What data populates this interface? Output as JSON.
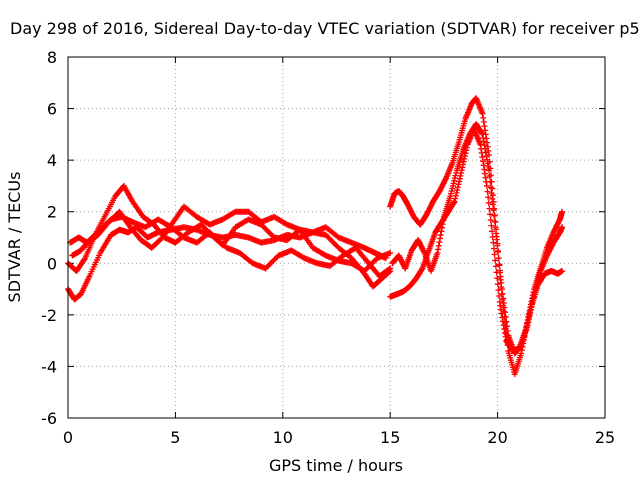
{
  "chart_data": {
    "type": "scatter",
    "title": "Day 298 of 2016, Sidereal Day-to-day VTEC variation (SDTVAR) for receiver p5",
    "xlabel": "GPS time / hours",
    "ylabel": "SDTVAR / TECUs",
    "xlim": [
      0,
      25
    ],
    "ylim": [
      -6,
      8
    ],
    "xticks": [
      "0",
      "5",
      "10",
      "15",
      "20",
      "25"
    ],
    "yticks": [
      "-6",
      "-4",
      "-2",
      "0",
      "2",
      "4",
      "6",
      "8"
    ],
    "grid": true,
    "marker": "plus",
    "color": "#ff0000",
    "series": [
      {
        "x": [
          0.0,
          0.3,
          0.6,
          1.0,
          1.5,
          2.0,
          2.4,
          2.8,
          3.2,
          3.7,
          4.2,
          4.8,
          5.4,
          6.0,
          6.6,
          7.2,
          7.8,
          8.4,
          9.0,
          9.6,
          10.2,
          10.8,
          11.4,
          12.0,
          12.6,
          13.2,
          13.8,
          14.2,
          14.6,
          15.0
        ],
        "y": [
          -1.0,
          -1.4,
          -1.2,
          -0.5,
          0.4,
          1.1,
          1.3,
          1.2,
          1.4,
          1.0,
          1.2,
          1.3,
          1.4,
          1.3,
          1.1,
          1.0,
          1.1,
          1.0,
          0.8,
          0.9,
          1.1,
          1.0,
          1.2,
          1.1,
          0.6,
          0.2,
          -0.4,
          -0.9,
          -0.6,
          -0.3
        ]
      },
      {
        "x": [
          0.0,
          0.4,
          0.8,
          1.2,
          1.7,
          2.2,
          2.6,
          3.0,
          3.5,
          4.0,
          4.5,
          5.0,
          5.6,
          6.2,
          6.8,
          7.4,
          8.0,
          8.6,
          9.2,
          9.8,
          10.4,
          11.0,
          11.6,
          12.2,
          12.8,
          13.4,
          14.0,
          14.5,
          15.0
        ],
        "y": [
          0.0,
          -0.3,
          0.2,
          1.0,
          1.8,
          2.6,
          3.0,
          2.4,
          1.8,
          1.5,
          1.0,
          0.8,
          1.2,
          1.5,
          1.0,
          0.6,
          0.4,
          0.0,
          -0.2,
          0.3,
          0.5,
          0.2,
          0.0,
          -0.1,
          0.3,
          0.6,
          0.0,
          -0.5,
          -0.2
        ]
      },
      {
        "x": [
          0.1,
          0.5,
          0.9,
          1.4,
          1.9,
          2.4,
          2.9,
          3.4,
          3.9,
          4.4,
          4.9,
          5.4,
          6.0,
          6.6,
          7.2,
          7.8,
          8.4,
          9.0,
          9.6,
          10.2,
          10.8,
          11.4,
          12.0,
          12.6,
          13.2,
          13.8,
          14.3,
          14.8
        ],
        "y": [
          0.8,
          1.0,
          0.8,
          1.1,
          1.6,
          2.0,
          1.4,
          0.9,
          0.6,
          1.0,
          1.6,
          2.2,
          1.8,
          1.5,
          1.7,
          2.0,
          2.0,
          1.6,
          1.8,
          1.5,
          1.3,
          1.2,
          1.4,
          1.0,
          0.8,
          0.6,
          0.4,
          0.2
        ]
      },
      {
        "x": [
          0.2,
          0.6,
          1.0,
          1.5,
          2.0,
          2.5,
          3.0,
          3.6,
          4.2,
          4.8,
          5.4,
          6.0,
          6.6,
          7.2,
          7.8,
          8.4,
          9.0,
          9.6,
          10.2,
          10.8,
          11.4,
          12.0,
          12.6,
          13.2,
          13.8,
          14.4,
          15.0
        ],
        "y": [
          0.3,
          0.5,
          0.9,
          1.3,
          1.7,
          1.8,
          1.6,
          1.4,
          1.7,
          1.4,
          1.0,
          0.8,
          1.2,
          0.7,
          1.4,
          1.7,
          1.5,
          1.0,
          0.9,
          1.3,
          0.6,
          0.3,
          0.1,
          0.0,
          -0.3,
          0.2,
          0.4
        ]
      },
      {
        "x": [
          15.0,
          15.3,
          15.6,
          15.9,
          16.2,
          16.5,
          16.8,
          17.1,
          17.4,
          17.7,
          18.0,
          18.3,
          18.6,
          18.9,
          19.2,
          19.5,
          19.8,
          20.1,
          20.4,
          20.7,
          21.0,
          21.3,
          21.6,
          21.9,
          22.2,
          22.5,
          22.8,
          23.0
        ],
        "y": [
          -1.3,
          -1.2,
          -1.1,
          -0.9,
          -0.6,
          -0.2,
          0.5,
          1.2,
          1.6,
          2.0,
          2.4,
          3.5,
          4.6,
          5.2,
          4.6,
          3.0,
          0.8,
          -1.5,
          -3.0,
          -3.4,
          -3.3,
          -2.6,
          -1.6,
          -0.8,
          -0.4,
          -0.3,
          -0.4,
          -0.3
        ]
      },
      {
        "x": [
          15.0,
          15.2,
          15.4,
          15.6,
          15.8,
          16.1,
          16.4,
          16.7,
          17.0,
          17.3,
          17.6,
          17.9,
          18.2,
          18.5,
          18.8,
          19.0,
          19.3,
          19.6,
          19.9,
          20.2,
          20.5,
          20.8,
          21.1,
          21.4,
          21.7,
          22.0,
          22.3,
          22.6,
          22.9,
          23.0
        ],
        "y": [
          2.2,
          2.7,
          2.8,
          2.6,
          2.3,
          1.8,
          1.5,
          1.9,
          2.4,
          2.8,
          3.3,
          3.9,
          4.7,
          5.6,
          6.2,
          6.4,
          5.8,
          4.2,
          1.6,
          -1.2,
          -3.4,
          -4.3,
          -3.5,
          -2.2,
          -1.0,
          -0.2,
          0.6,
          1.2,
          1.7,
          2.0
        ]
      },
      {
        "x": [
          15.1,
          15.4,
          15.7,
          16.0,
          16.3,
          16.6,
          16.9,
          17.2,
          17.5,
          17.8,
          18.1,
          18.4,
          18.7,
          19.0,
          19.3,
          19.6,
          19.9,
          20.2,
          20.5,
          20.8,
          21.1,
          21.4,
          21.7,
          22.0,
          22.3,
          22.6,
          22.9,
          23.0
        ],
        "y": [
          0.0,
          0.3,
          -0.2,
          0.5,
          0.9,
          0.4,
          -0.3,
          0.4,
          1.8,
          2.6,
          3.6,
          4.4,
          5.0,
          5.4,
          5.0,
          3.6,
          1.4,
          -1.0,
          -2.8,
          -3.5,
          -3.2,
          -2.4,
          -1.2,
          -0.3,
          0.3,
          0.8,
          1.2,
          1.4
        ]
      }
    ]
  }
}
